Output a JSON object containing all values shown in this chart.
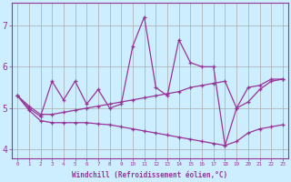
{
  "x": [
    0,
    1,
    2,
    3,
    4,
    5,
    6,
    7,
    8,
    9,
    10,
    11,
    12,
    13,
    14,
    15,
    16,
    17,
    18,
    19,
    20,
    21,
    22,
    23
  ],
  "y_main": [
    5.3,
    5.0,
    4.8,
    5.65,
    5.2,
    5.65,
    5.1,
    5.45,
    5.0,
    5.1,
    6.5,
    7.2,
    5.5,
    5.3,
    6.65,
    6.1,
    6.0,
    6.0,
    4.1,
    5.0,
    5.5,
    5.55,
    5.7,
    5.7
  ],
  "y_upper": [
    5.3,
    5.05,
    4.85,
    4.85,
    4.9,
    4.95,
    5.0,
    5.05,
    5.1,
    5.15,
    5.2,
    5.25,
    5.3,
    5.35,
    5.4,
    5.5,
    5.55,
    5.6,
    5.65,
    5.0,
    5.15,
    5.45,
    5.65,
    5.7
  ],
  "y_lower": [
    5.3,
    4.95,
    4.7,
    4.65,
    4.65,
    4.65,
    4.65,
    4.62,
    4.6,
    4.55,
    4.5,
    4.45,
    4.4,
    4.35,
    4.3,
    4.25,
    4.2,
    4.15,
    4.1,
    4.2,
    4.4,
    4.5,
    4.55,
    4.6
  ],
  "color": "#993399",
  "bg_color": "#cceeff",
  "grid_color": "#aaaaaa",
  "xlabel": "Windchill (Refroidissement éolien,°C)",
  "xlim_min": -0.5,
  "xlim_max": 23.5,
  "ylim_min": 3.8,
  "ylim_max": 7.55,
  "yticks": [
    4,
    5,
    6,
    7
  ],
  "xticks": [
    0,
    1,
    2,
    3,
    4,
    5,
    6,
    7,
    8,
    9,
    10,
    11,
    12,
    13,
    14,
    15,
    16,
    17,
    18,
    19,
    20,
    21,
    22,
    23
  ]
}
